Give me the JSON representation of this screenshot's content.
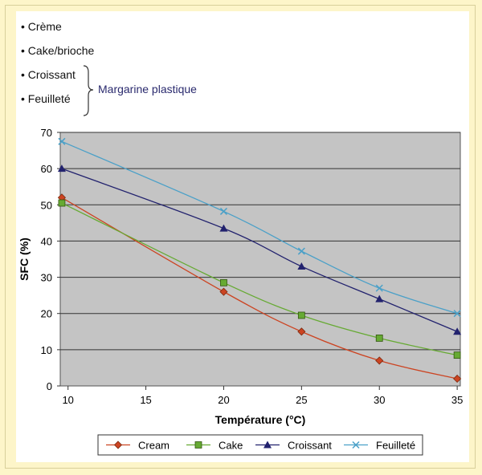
{
  "notes": {
    "items": [
      "Crème",
      "Cake/brioche",
      "Croissant",
      "Feuilleté"
    ],
    "group_label": "Margarine plastique"
  },
  "chart_data": {
    "type": "line",
    "xlabel": "Température (°C)",
    "ylabel": "SFC (%)",
    "xlim": [
      9.5,
      35.2
    ],
    "ylim": [
      0,
      70
    ],
    "xticks": [
      10,
      15,
      20,
      25,
      30,
      35
    ],
    "yticks": [
      0,
      10,
      20,
      30,
      40,
      50,
      60,
      70
    ],
    "grid": "horizontal",
    "legend_position": "bottom",
    "x": [
      9.6,
      20,
      25,
      30,
      35
    ],
    "series": [
      {
        "name": "Cream",
        "color": "#cc4422",
        "marker": "diamond",
        "values": [
          52,
          26,
          15,
          7,
          2
        ]
      },
      {
        "name": "Cake",
        "color": "#66aa33",
        "marker": "square",
        "values": [
          50.5,
          28.5,
          19.5,
          13.2,
          8.5
        ]
      },
      {
        "name": "Croissant",
        "color": "#22226e",
        "marker": "triangle",
        "values": [
          60,
          43.5,
          33,
          24,
          15
        ]
      },
      {
        "name": "Feuilleté",
        "color": "#4aa0c8",
        "marker": "cross",
        "values": [
          67.5,
          48.2,
          37.2,
          27,
          20
        ]
      }
    ]
  }
}
